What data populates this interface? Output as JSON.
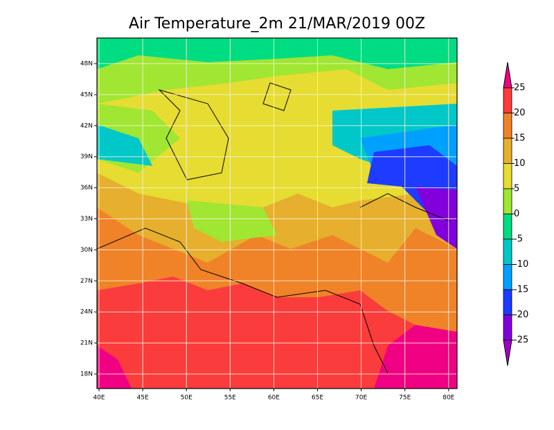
{
  "title": "Air Temperature_2m 21/MAR/2019 00Z",
  "lon_labels": [
    "40E",
    "45E",
    "50E",
    "55E",
    "60E",
    "65E",
    "70E",
    "75E",
    "80E"
  ],
  "lat_labels": [
    "48N",
    "45N",
    "42N",
    "39N",
    "36N",
    "33N",
    "30N",
    "27N",
    "24N",
    "21N",
    "18N"
  ],
  "colorbar": {
    "ticks": [
      25,
      20,
      15,
      10,
      5,
      0,
      -5,
      -10,
      -15,
      -20,
      -25
    ],
    "colors": [
      "#f00082",
      "#fa3c3c",
      "#f08228",
      "#e6af2d",
      "#e6dc32",
      "#a0e632",
      "#00dc82",
      "#00c8c8",
      "#00a0ff",
      "#1e3cff",
      "#8200dc",
      "#a000c8"
    ]
  }
}
